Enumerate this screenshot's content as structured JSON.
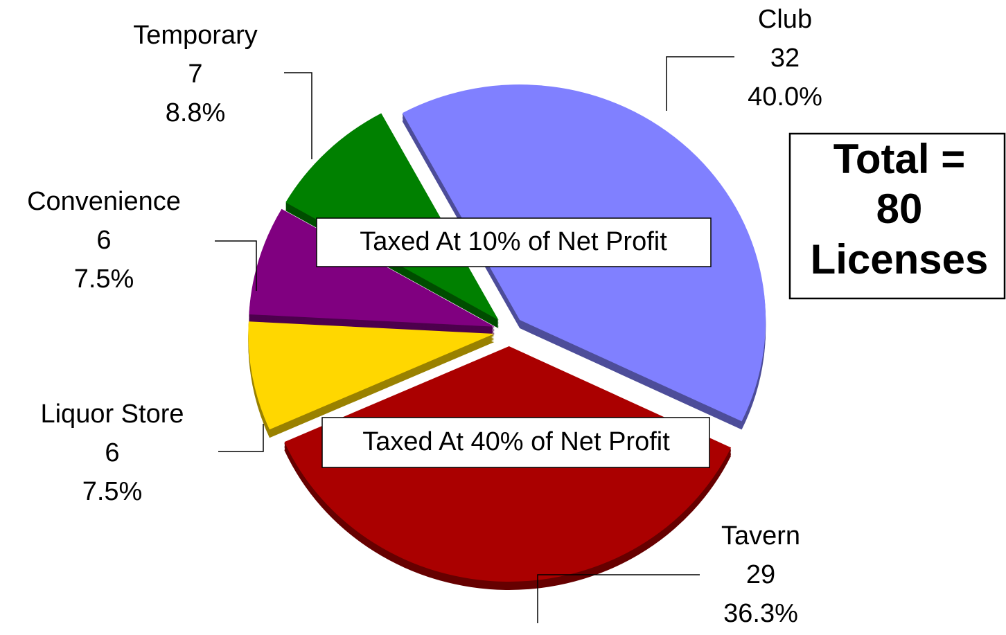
{
  "chart_data": {
    "type": "pie",
    "categories": [
      "Club",
      "Tavern",
      "Liquor Store",
      "Convenience",
      "Temporary"
    ],
    "values": [
      32,
      29,
      6,
      6,
      7
    ],
    "percents": [
      40.0,
      36.3,
      7.5,
      7.5,
      8.8
    ],
    "percent_labels": [
      "40.0%",
      "36.3%",
      "7.5%",
      "7.5%",
      "8.8%"
    ],
    "colors": [
      "#8080ff",
      "#aa0000",
      "#ffd700",
      "#800080",
      "#008000"
    ],
    "annotations": [
      "Taxed At 10% of Net Profit",
      "Taxed At 40% of Net Profit"
    ],
    "total_label": "Total =",
    "total": 80,
    "total_unit": "Licenses"
  }
}
